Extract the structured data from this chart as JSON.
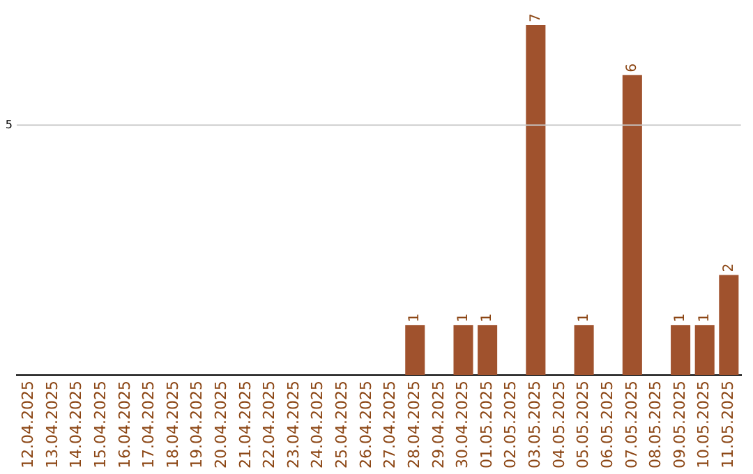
{
  "chart_data": {
    "type": "bar",
    "categories": [
      "12.04.2025",
      "13.04.2025",
      "14.04.2025",
      "15.04.2025",
      "16.04.2025",
      "17.04.2025",
      "18.04.2025",
      "19.04.2025",
      "20.04.2025",
      "21.04.2025",
      "22.04.2025",
      "23.04.2025",
      "24.04.2025",
      "25.04.2025",
      "26.04.2025",
      "27.04.2025",
      "28.04.2025",
      "29.04.2025",
      "30.04.2025",
      "01.05.2025",
      "02.05.2025",
      "03.05.2025",
      "04.05.2025",
      "05.05.2025",
      "06.05.2025",
      "07.05.2025",
      "08.05.2025",
      "09.05.2025",
      "10.05.2025",
      "11.05.2025"
    ],
    "values": [
      null,
      null,
      null,
      null,
      null,
      null,
      null,
      null,
      null,
      null,
      null,
      null,
      null,
      null,
      null,
      null,
      1,
      null,
      1,
      1,
      null,
      7,
      null,
      1,
      null,
      6,
      null,
      1,
      1,
      2
    ],
    "data_labels": true,
    "color": "#a0522d",
    "ref_lines": [
      {
        "axis": "y",
        "value": 5,
        "label": "5",
        "color": "#c8c8c8"
      }
    ],
    "legend": false
  }
}
